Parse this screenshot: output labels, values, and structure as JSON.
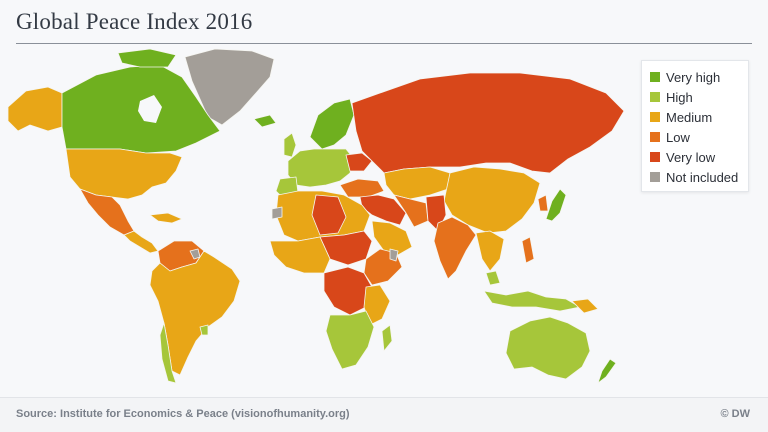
{
  "title": "Global Peace Index 2016",
  "legend": [
    {
      "label": "Very high",
      "color": "#6fb01f"
    },
    {
      "label": "High",
      "color": "#a6c63a"
    },
    {
      "label": "Medium",
      "color": "#e8a617"
    },
    {
      "label": "Low",
      "color": "#e5711c"
    },
    {
      "label": "Very low",
      "color": "#d8471a"
    },
    {
      "label": "Not included",
      "color": "#a39e98"
    }
  ],
  "source": "Source: Institute for Economics & Peace (visionofhumanity.org)",
  "credit": "© DW"
}
